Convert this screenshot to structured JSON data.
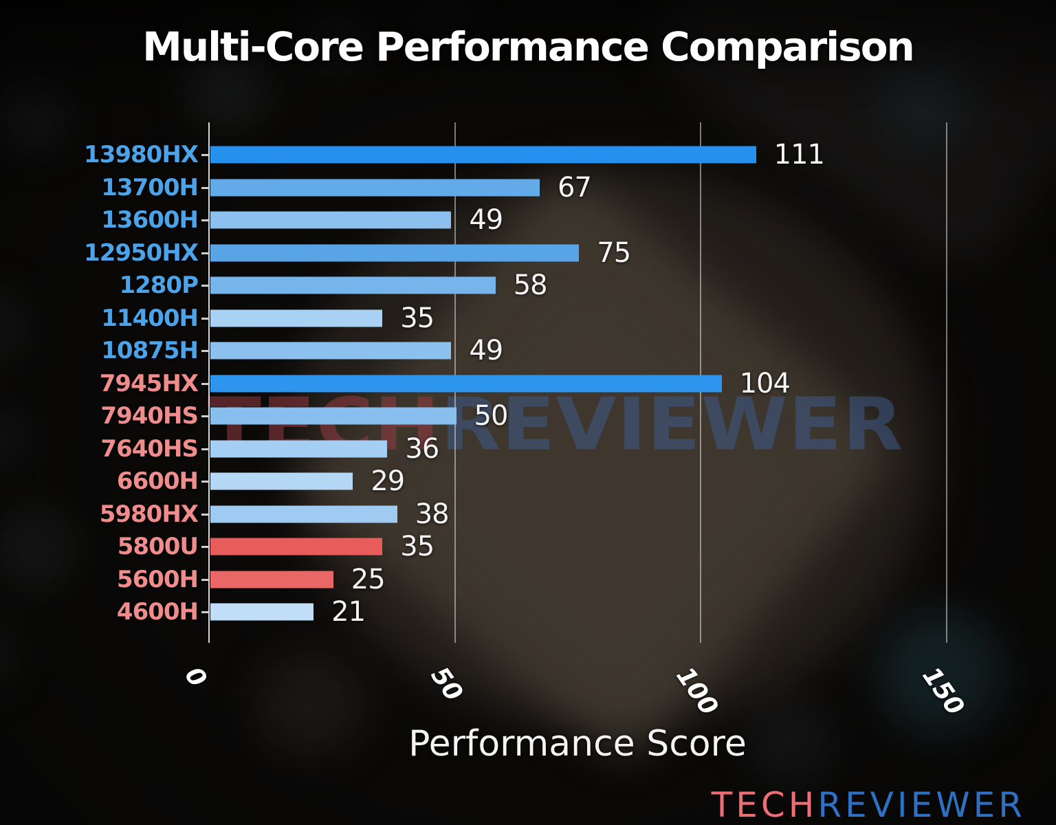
{
  "title": "Multi-Core Performance Comparison",
  "watermark": {
    "left": "TECH",
    "right": "REVIEWER"
  },
  "logo": {
    "left": "TECH",
    "right": "REVIEWER"
  },
  "colors": {
    "intel_label": "#4ba3e9",
    "amd_label": "#f08c8c",
    "value_text": "#f5f5f5",
    "grid_line": "rgba(238,238,238,0.5)",
    "logo_tech": "#ed6f75",
    "logo_reviewer": "#2e70c3"
  },
  "chart_data": {
    "type": "bar",
    "orientation": "horizontal",
    "title": "Multi-Core Performance Comparison",
    "xlabel": "Performance Score",
    "ylabel": "",
    "xlim": [
      0,
      158
    ],
    "xticks": [
      0,
      50,
      100,
      150
    ],
    "grid": true,
    "legend": "none",
    "categories": [
      "13980HX",
      "13700H",
      "13600H",
      "12950HX",
      "1280P",
      "11400H",
      "10875H",
      "7945HX",
      "7940HS",
      "7640HS",
      "6600H",
      "5980HX",
      "5800U",
      "5600H",
      "4600H"
    ],
    "values": [
      111,
      67,
      49,
      75,
      58,
      35,
      49,
      104,
      50,
      36,
      29,
      38,
      35,
      25,
      21
    ],
    "bar_colors": [
      "#2590ee",
      "#63aae9",
      "#8cc0ef",
      "#58a4e7",
      "#76b4ec",
      "#a8d1f3",
      "#8cc0ef",
      "#2e95ef",
      "#89bfef",
      "#a4cef3",
      "#b3d7f5",
      "#9fcbf2",
      "#e85c5c",
      "#ea6767",
      "#c0def8"
    ],
    "label_brands": [
      "intel",
      "intel",
      "intel",
      "intel",
      "intel",
      "intel",
      "intel",
      "amd",
      "amd",
      "amd",
      "amd",
      "amd",
      "amd",
      "amd",
      "amd"
    ]
  }
}
